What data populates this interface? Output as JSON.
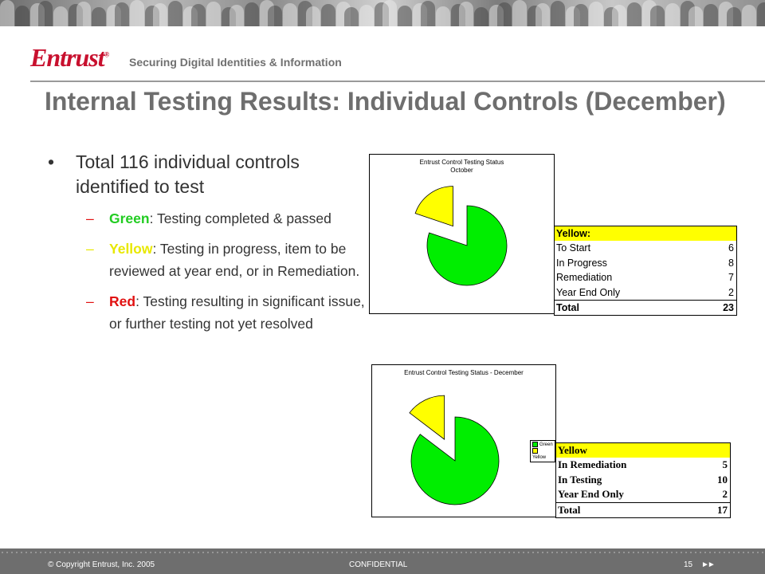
{
  "header": {
    "logo_text": "Entrust",
    "logo_mark": "®",
    "tagline": "Securing Digital Identities & Information"
  },
  "slide": {
    "title": "Internal Testing Results: Individual Controls (December)",
    "bullet": "Total 116 individual controls identified to test",
    "subbullets": [
      {
        "label": "Green",
        "text": ": Testing completed & passed"
      },
      {
        "label": "Yellow",
        "text": ": Testing in progress,  item to be reviewed at year end, or in Remediation."
      },
      {
        "label": "Red",
        "text": ": Testing resulting in significant issue, or further testing not yet resolved"
      }
    ]
  },
  "colors": {
    "green": "#00ee00",
    "yellow": "#ffff00",
    "red": "#ee0000",
    "title": "#6e6e6e"
  },
  "chart_data": [
    {
      "type": "pie",
      "title": "Entrust Control Testing Status",
      "subtitle": "October",
      "slices": [
        {
          "name": "Green",
          "value": 93,
          "color": "#00ee00",
          "exploded": false
        },
        {
          "name": "Yellow",
          "value": 23,
          "color": "#ffff00",
          "exploded": true
        }
      ]
    },
    {
      "type": "pie",
      "title": "Entrust Control Testing Status - December",
      "legend": [
        "Green",
        "Yellow"
      ],
      "legend_position": "right",
      "slices": [
        {
          "name": "Green",
          "value": 99,
          "color": "#00ee00",
          "exploded": false
        },
        {
          "name": "Yellow",
          "value": 17,
          "color": "#ffff00",
          "exploded": true
        }
      ]
    }
  ],
  "table1": {
    "header": "Yellow:",
    "rows": [
      {
        "label": "To Start",
        "value": "6"
      },
      {
        "label": "In Progress",
        "value": "8"
      },
      {
        "label": "Remediation",
        "value": "7"
      },
      {
        "label": "Year End Only",
        "value": "2"
      }
    ],
    "total_label": "Total",
    "total_value": "23"
  },
  "table2": {
    "header": "Yellow",
    "rows": [
      {
        "label": "In Remediation",
        "value": "5"
      },
      {
        "label": "In Testing",
        "value": "10"
      },
      {
        "label": "Year End Only",
        "value": "2"
      }
    ],
    "total_label": "Total",
    "total_value": "17"
  },
  "footer": {
    "copyright": "© Copyright Entrust, Inc. 2005",
    "confidential": "CONFIDENTIAL",
    "page": "15",
    "arrows": "►►"
  }
}
